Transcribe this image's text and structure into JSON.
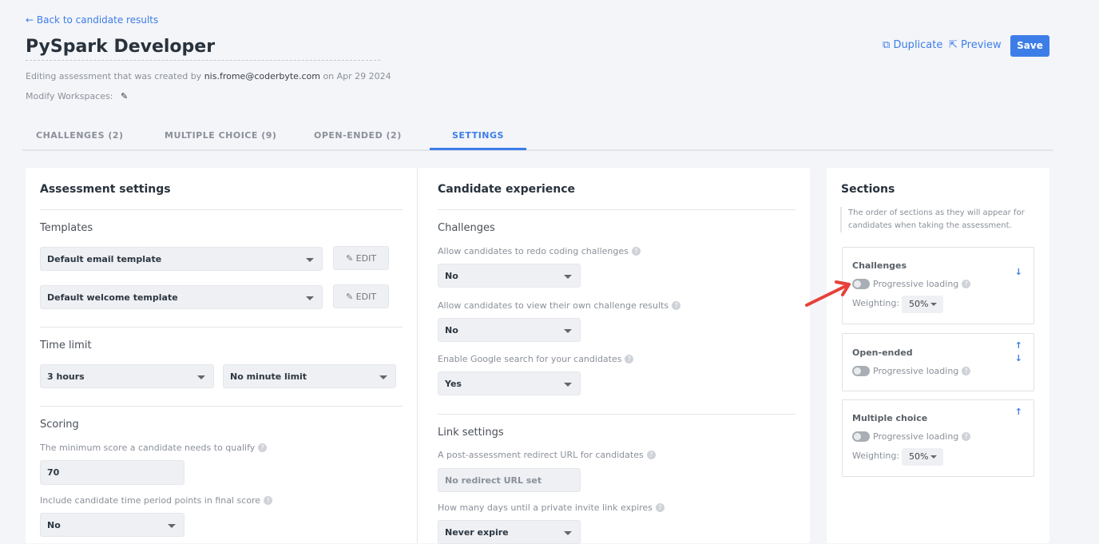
{
  "header": {
    "back_link": "← Back to candidate results",
    "title": "PySpark Developer",
    "created_prefix": "Editing assessment that was created by",
    "creator": "nis.frome@coderbyte.com",
    "created_suffix": "on Apr 29 2024",
    "workspaces_label": "Modify Workspaces:",
    "duplicate": "Duplicate",
    "preview": "Preview",
    "save": "Save"
  },
  "tabs": [
    {
      "label": "CHALLENGES (2)"
    },
    {
      "label": "MULTIPLE CHOICE (9)"
    },
    {
      "label": "OPEN-ENDED (2)"
    },
    {
      "label": "SETTINGS",
      "active": true
    }
  ],
  "assessment": {
    "title": "Assessment settings",
    "templates_heading": "Templates",
    "email_template": "Default email template",
    "welcome_template": "Default welcome template",
    "edit": "EDIT",
    "time_heading": "Time limit",
    "hours": "3 hours",
    "minutes": "No minute limit",
    "scoring_heading": "Scoring",
    "min_score_label": "The minimum score a candidate needs to qualify",
    "min_score": "70",
    "time_points_label": "Include candidate time period points in final score",
    "time_points": "No"
  },
  "candidate": {
    "title": "Candidate experience",
    "challenges_heading": "Challenges",
    "redo_label": "Allow candidates to redo coding challenges",
    "redo": "No",
    "view_results_label": "Allow candidates to view their own challenge results",
    "view_results": "No",
    "google_label": "Enable Google search for your candidates",
    "google": "Yes",
    "link_heading": "Link settings",
    "redirect_label": "A post-assessment redirect URL for candidates",
    "redirect_placeholder": "No redirect URL set",
    "expire_label": "How many days until a private invite link expires",
    "expire": "Never expire"
  },
  "sections": {
    "title": "Sections",
    "description": "The order of sections as they will appear for candidates when taking the assessment.",
    "progressive": "Progressive loading",
    "weighting_label": "Weighting:",
    "items": [
      {
        "name": "Challenges",
        "weighting": "50%",
        "progressive_on": false
      },
      {
        "name": "Open-ended",
        "progressive_on": false
      },
      {
        "name": "Multiple choice",
        "weighting": "50%",
        "progressive_on": false
      }
    ]
  },
  "colors": {
    "accent": "#3d7de8",
    "annotation_arrow": "#e8403a"
  }
}
